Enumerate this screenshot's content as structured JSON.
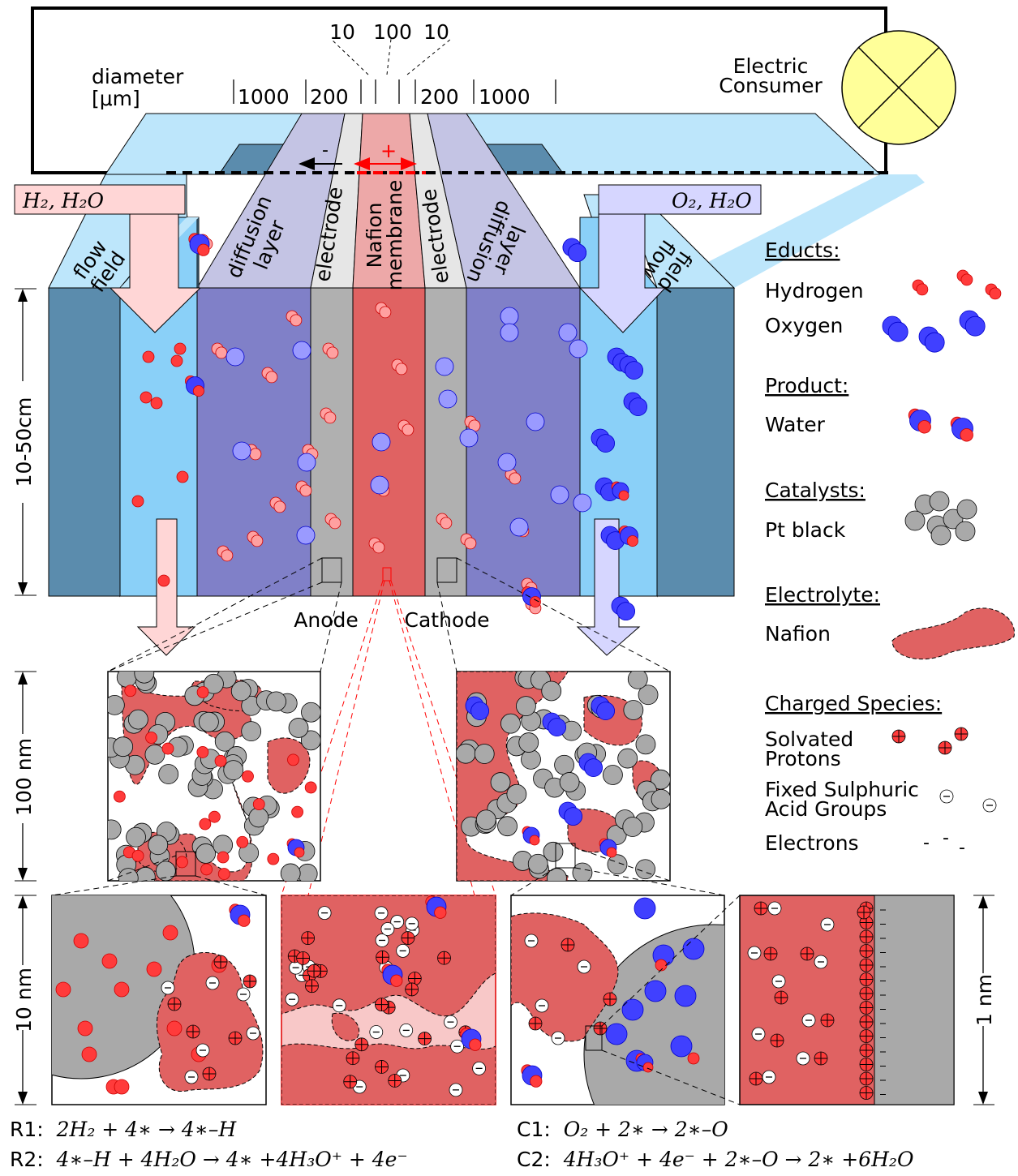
{
  "diameter": {
    "label_line1": "diameter",
    "label_line2": "[μm]",
    "values": [
      "1000",
      "200",
      "10",
      "100",
      "10",
      "200",
      "1000"
    ]
  },
  "consumer": {
    "line1": "Electric",
    "line2": "Consumer"
  },
  "polarity": {
    "minus": "-",
    "plus": "+"
  },
  "inlets": {
    "left": "H₂, H₂O",
    "right": "O₂, H₂O"
  },
  "layers": {
    "flow_field_left": [
      "flow",
      "field"
    ],
    "diffusion_left": [
      "diffusion",
      "layer"
    ],
    "electrode_left": "electrode",
    "membrane": [
      "Nafion",
      "membrane"
    ],
    "electrode_right": "electrode",
    "diffusion_right": [
      "diffusion",
      "layer"
    ],
    "flow_field_right": [
      "flow",
      "field"
    ]
  },
  "electrodes": {
    "anode": "Anode",
    "cathode": "Cathode"
  },
  "scales": {
    "height": "10-50cm",
    "mid": "100 nm",
    "bottom": "10 nm",
    "right": "1 nm"
  },
  "legend": {
    "educts": {
      "heading": "Educts:",
      "hydrogen": "Hydrogen",
      "oxygen": "Oxygen"
    },
    "product": {
      "heading": "Product:",
      "water": "Water"
    },
    "catalysts": {
      "heading": "Catalysts:",
      "pt": "Pt black"
    },
    "electrolyte": {
      "heading": "Electrolyte:",
      "nafion": "Nafion"
    },
    "charged": {
      "heading": "Charged Species:",
      "protons": [
        "Solvated",
        "Protons"
      ],
      "acid": [
        "Fixed Sulphuric",
        "Acid Groups"
      ],
      "electrons": "Electrons"
    }
  },
  "reactions": {
    "r1": {
      "label": "R1:",
      "eq": "2H₂ + 4∗ → 4∗–H"
    },
    "r2": {
      "label": "R2:",
      "eq": "4∗–H + 4H₂O → 4∗ +4H₃O⁺ + 4e⁻"
    },
    "c1": {
      "label": "C1:",
      "eq": "O₂ + 2∗ → 2∗–O"
    },
    "c2": {
      "label": "C2:",
      "eq": "4H₃O⁺ + 4e⁻ + 2∗–O → 2∗ +6H₂O"
    }
  },
  "colors": {
    "hydrogen": "#ff3b3b",
    "hydrogen_faded": "#ffa0a0",
    "oxygen": "#4040ff",
    "oxygen_faded": "#9a9aff",
    "catalyst": "#a9a9a9",
    "nafion": "#e06262",
    "nafion_light": "#f8c8c8",
    "diffusion": "#8080c8",
    "electrode": "#b0b0b0",
    "flow_field": "#5b8cad",
    "flow_channel": "#8ad0f8",
    "consumer": "#ffff99"
  }
}
